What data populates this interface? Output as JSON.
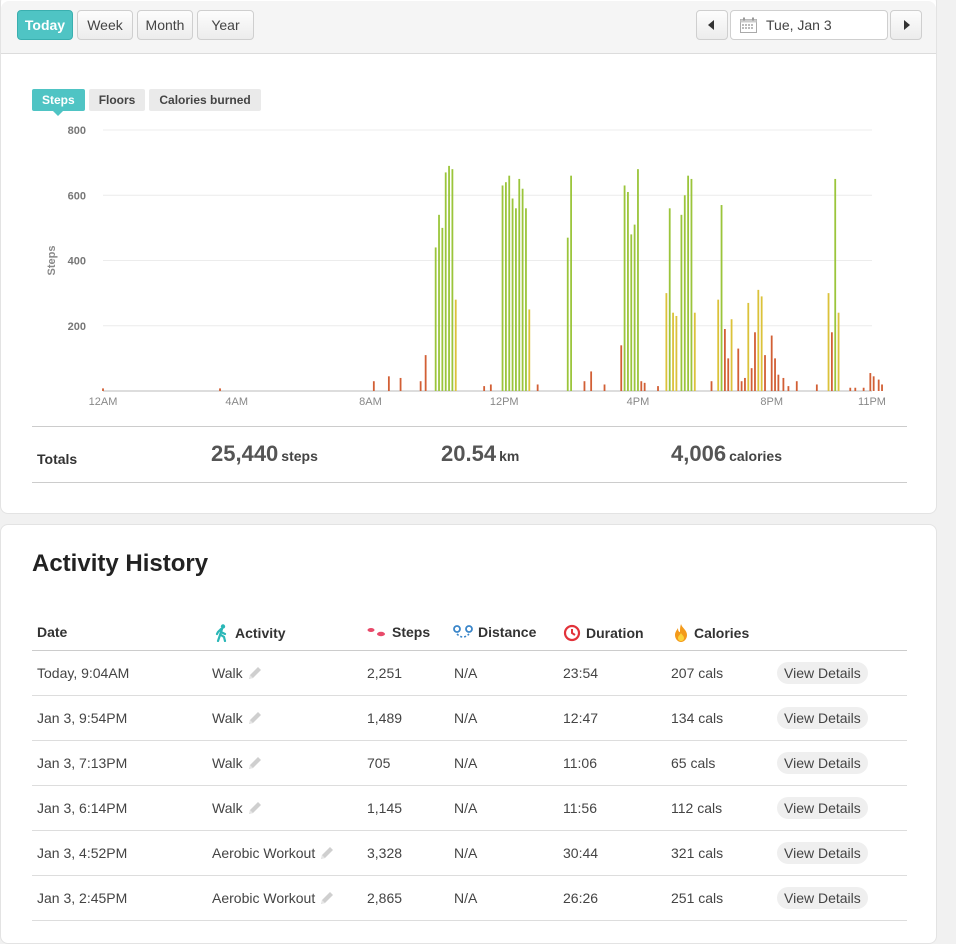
{
  "toolbar": {
    "range_tabs": [
      "Today",
      "Week",
      "Month",
      "Year"
    ],
    "active_range": "Today",
    "date": "Tue, Jan 3",
    "prev_icon": "caret-left-icon",
    "next_icon": "caret-right-icon",
    "calendar_icon": "calendar-icon"
  },
  "metric_tabs": [
    "Steps",
    "Floors",
    "Calories burned"
  ],
  "active_metric": "Steps",
  "chart_data": {
    "type": "bar",
    "ylabel": "Steps",
    "ylim": [
      0,
      800
    ],
    "yticks": [
      "200",
      "400",
      "600",
      "800"
    ],
    "x_tick_labels": [
      "12AM",
      "4AM",
      "8AM",
      "12PM",
      "4PM",
      "8PM",
      "11PM"
    ],
    "x_tick_hours": [
      0,
      4,
      8,
      12,
      16,
      20,
      23
    ],
    "grid": true,
    "colors": {
      "low": "#d25f35",
      "mid": "#dbc23a",
      "high": "#9bc53b"
    },
    "bars": [
      {
        "h": 0.0,
        "v": 8
      },
      {
        "h": 3.5,
        "v": 8
      },
      {
        "h": 8.1,
        "v": 30
      },
      {
        "h": 8.55,
        "v": 45
      },
      {
        "h": 8.9,
        "v": 40
      },
      {
        "h": 9.5,
        "v": 30
      },
      {
        "h": 9.65,
        "v": 110
      },
      {
        "h": 9.95,
        "v": 440
      },
      {
        "h": 10.05,
        "v": 540
      },
      {
        "h": 10.15,
        "v": 500
      },
      {
        "h": 10.25,
        "v": 670
      },
      {
        "h": 10.35,
        "v": 690
      },
      {
        "h": 10.45,
        "v": 680
      },
      {
        "h": 10.55,
        "v": 280
      },
      {
        "h": 11.4,
        "v": 15
      },
      {
        "h": 11.6,
        "v": 20
      },
      {
        "h": 11.95,
        "v": 630
      },
      {
        "h": 12.05,
        "v": 640
      },
      {
        "h": 12.15,
        "v": 660
      },
      {
        "h": 12.25,
        "v": 590
      },
      {
        "h": 12.35,
        "v": 560
      },
      {
        "h": 12.45,
        "v": 650
      },
      {
        "h": 12.55,
        "v": 620
      },
      {
        "h": 12.65,
        "v": 560
      },
      {
        "h": 12.75,
        "v": 250
      },
      {
        "h": 13.0,
        "v": 20
      },
      {
        "h": 13.9,
        "v": 470
      },
      {
        "h": 14.0,
        "v": 660
      },
      {
        "h": 14.4,
        "v": 30
      },
      {
        "h": 14.6,
        "v": 60
      },
      {
        "h": 15.0,
        "v": 20
      },
      {
        "h": 15.5,
        "v": 140
      },
      {
        "h": 15.6,
        "v": 630
      },
      {
        "h": 15.7,
        "v": 610
      },
      {
        "h": 15.8,
        "v": 480
      },
      {
        "h": 15.9,
        "v": 510
      },
      {
        "h": 16.0,
        "v": 680
      },
      {
        "h": 16.1,
        "v": 30
      },
      {
        "h": 16.2,
        "v": 25
      },
      {
        "h": 16.6,
        "v": 15
      },
      {
        "h": 16.85,
        "v": 300
      },
      {
        "h": 16.95,
        "v": 560
      },
      {
        "h": 17.05,
        "v": 240
      },
      {
        "h": 17.15,
        "v": 230
      },
      {
        "h": 17.3,
        "v": 540
      },
      {
        "h": 17.4,
        "v": 600
      },
      {
        "h": 17.5,
        "v": 660
      },
      {
        "h": 17.6,
        "v": 650
      },
      {
        "h": 17.7,
        "v": 240
      },
      {
        "h": 18.2,
        "v": 30
      },
      {
        "h": 18.4,
        "v": 280
      },
      {
        "h": 18.5,
        "v": 570
      },
      {
        "h": 18.6,
        "v": 190
      },
      {
        "h": 18.7,
        "v": 100
      },
      {
        "h": 18.8,
        "v": 220
      },
      {
        "h": 19.0,
        "v": 130
      },
      {
        "h": 19.1,
        "v": 30
      },
      {
        "h": 19.2,
        "v": 40
      },
      {
        "h": 19.3,
        "v": 270
      },
      {
        "h": 19.4,
        "v": 70
      },
      {
        "h": 19.5,
        "v": 180
      },
      {
        "h": 19.6,
        "v": 310
      },
      {
        "h": 19.7,
        "v": 290
      },
      {
        "h": 19.8,
        "v": 110
      },
      {
        "h": 20.0,
        "v": 170
      },
      {
        "h": 20.1,
        "v": 100
      },
      {
        "h": 20.2,
        "v": 50
      },
      {
        "h": 20.35,
        "v": 40
      },
      {
        "h": 20.5,
        "v": 15
      },
      {
        "h": 20.75,
        "v": 30
      },
      {
        "h": 21.35,
        "v": 20
      },
      {
        "h": 21.7,
        "v": 300
      },
      {
        "h": 21.8,
        "v": 180
      },
      {
        "h": 21.9,
        "v": 650
      },
      {
        "h": 22.0,
        "v": 240
      },
      {
        "h": 22.35,
        "v": 10
      },
      {
        "h": 22.5,
        "v": 10
      },
      {
        "h": 22.75,
        "v": 10
      },
      {
        "h": 22.95,
        "v": 55
      },
      {
        "h": 23.05,
        "v": 45
      },
      {
        "h": 23.2,
        "v": 35
      },
      {
        "h": 23.3,
        "v": 20
      }
    ]
  },
  "totals": {
    "label": "Totals",
    "steps": "25,440",
    "steps_unit": "steps",
    "distance": "20.54",
    "distance_unit": "km",
    "calories": "4,006",
    "calories_unit": "calories"
  },
  "history": {
    "title": "Activity History",
    "columns": {
      "date": "Date",
      "activity": "Activity",
      "steps": "Steps",
      "distance": "Distance",
      "duration": "Duration",
      "calories": "Calories"
    },
    "view_label": "View Details",
    "rows": [
      {
        "date": "Today, 9:04AM",
        "activity": "Walk",
        "steps": "2,251",
        "distance": "N/A",
        "duration": "23:54",
        "calories": "207 cals"
      },
      {
        "date": "Jan 3, 9:54PM",
        "activity": "Walk",
        "steps": "1,489",
        "distance": "N/A",
        "duration": "12:47",
        "calories": "134 cals"
      },
      {
        "date": "Jan 3, 7:13PM",
        "activity": "Walk",
        "steps": "705",
        "distance": "N/A",
        "duration": "11:06",
        "calories": "65 cals"
      },
      {
        "date": "Jan 3, 6:14PM",
        "activity": "Walk",
        "steps": "1,145",
        "distance": "N/A",
        "duration": "11:56",
        "calories": "112 cals"
      },
      {
        "date": "Jan 3, 4:52PM",
        "activity": "Aerobic Workout",
        "steps": "3,328",
        "distance": "N/A",
        "duration": "30:44",
        "calories": "321 cals"
      },
      {
        "date": "Jan 3, 2:45PM",
        "activity": "Aerobic Workout",
        "steps": "2,865",
        "distance": "N/A",
        "duration": "26:26",
        "calories": "251 cals"
      }
    ]
  }
}
